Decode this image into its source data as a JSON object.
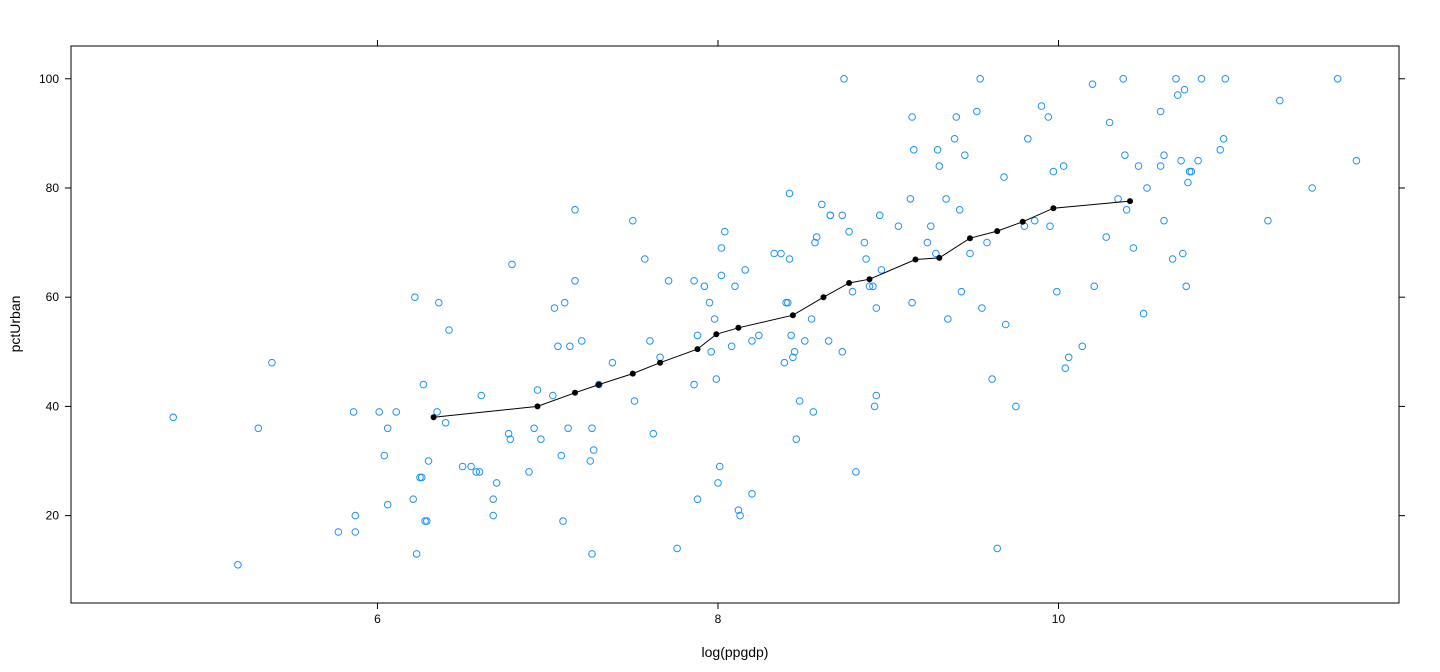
{
  "chart_data": {
    "type": "scatter",
    "xlabel": "log(ppgdp)",
    "ylabel": "pctUrban",
    "xlim": [
      4.2,
      12.0
    ],
    "ylim": [
      4,
      106
    ],
    "x_ticks": [
      6,
      8,
      10
    ],
    "y_ticks": [
      20,
      40,
      60,
      80,
      100
    ],
    "grid": false,
    "colors": {
      "points": "#1E90FF",
      "smooth_line": "#000000",
      "frame": "#000000"
    },
    "series": [
      {
        "type": "scatter",
        "marker": "open-circle",
        "points": [
          [
            4.8,
            38
          ],
          [
            5.18,
            11
          ],
          [
            5.3,
            36
          ],
          [
            5.38,
            48
          ],
          [
            5.77,
            17
          ],
          [
            5.86,
            39
          ],
          [
            5.87,
            20
          ],
          [
            5.87,
            17
          ],
          [
            6.01,
            39
          ],
          [
            6.04,
            31
          ],
          [
            6.06,
            36
          ],
          [
            6.06,
            22
          ],
          [
            6.11,
            39
          ],
          [
            6.21,
            23
          ],
          [
            6.22,
            60
          ],
          [
            6.23,
            13
          ],
          [
            6.25,
            27
          ],
          [
            6.26,
            27
          ],
          [
            6.27,
            44
          ],
          [
            6.28,
            19
          ],
          [
            6.29,
            19
          ],
          [
            6.3,
            30
          ],
          [
            6.35,
            39
          ],
          [
            6.36,
            59
          ],
          [
            6.4,
            37
          ],
          [
            6.42,
            54
          ],
          [
            6.5,
            29
          ],
          [
            6.55,
            29
          ],
          [
            6.58,
            28
          ],
          [
            6.6,
            28
          ],
          [
            6.61,
            42
          ],
          [
            6.68,
            20
          ],
          [
            6.68,
            23
          ],
          [
            6.7,
            26
          ],
          [
            6.77,
            35
          ],
          [
            6.78,
            34
          ],
          [
            6.79,
            66
          ],
          [
            6.89,
            28
          ],
          [
            6.92,
            36
          ],
          [
            6.94,
            43
          ],
          [
            6.96,
            34
          ],
          [
            7.03,
            42
          ],
          [
            7.04,
            58
          ],
          [
            7.06,
            51
          ],
          [
            7.08,
            31
          ],
          [
            7.09,
            19
          ],
          [
            7.1,
            59
          ],
          [
            7.12,
            36
          ],
          [
            7.13,
            51
          ],
          [
            7.16,
            63
          ],
          [
            7.16,
            76
          ],
          [
            7.2,
            52
          ],
          [
            7.25,
            30
          ],
          [
            7.26,
            36
          ],
          [
            7.26,
            13
          ],
          [
            7.27,
            32
          ],
          [
            7.3,
            44
          ],
          [
            7.5,
            74
          ],
          [
            7.51,
            41
          ],
          [
            7.38,
            48
          ],
          [
            7.6,
            52
          ],
          [
            7.62,
            35
          ],
          [
            7.57,
            67
          ],
          [
            7.66,
            49
          ],
          [
            7.71,
            63
          ],
          [
            7.76,
            14
          ],
          [
            7.86,
            63
          ],
          [
            7.86,
            44
          ],
          [
            7.88,
            53
          ],
          [
            7.88,
            23
          ],
          [
            7.92,
            62
          ],
          [
            7.95,
            59
          ],
          [
            7.96,
            50
          ],
          [
            7.98,
            56
          ],
          [
            7.99,
            45
          ],
          [
            8.0,
            26
          ],
          [
            8.01,
            29
          ],
          [
            8.02,
            64
          ],
          [
            8.02,
            69
          ],
          [
            8.04,
            72
          ],
          [
            8.08,
            51
          ],
          [
            8.1,
            62
          ],
          [
            8.12,
            21
          ],
          [
            8.13,
            20
          ],
          [
            8.16,
            65
          ],
          [
            8.2,
            52
          ],
          [
            8.2,
            24
          ],
          [
            8.24,
            53
          ],
          [
            8.33,
            68
          ],
          [
            8.37,
            68
          ],
          [
            8.39,
            48
          ],
          [
            8.4,
            59
          ],
          [
            8.41,
            59
          ],
          [
            8.42,
            79
          ],
          [
            8.42,
            67
          ],
          [
            8.43,
            53
          ],
          [
            8.44,
            49
          ],
          [
            8.45,
            50
          ],
          [
            8.46,
            34
          ],
          [
            8.48,
            41
          ],
          [
            8.51,
            52
          ],
          [
            8.55,
            56
          ],
          [
            8.56,
            39
          ],
          [
            8.57,
            70
          ],
          [
            8.58,
            71
          ],
          [
            8.61,
            77
          ],
          [
            8.65,
            52
          ],
          [
            8.66,
            75
          ],
          [
            8.66,
            75
          ],
          [
            8.73,
            75
          ],
          [
            8.73,
            50
          ],
          [
            8.74,
            100
          ],
          [
            8.77,
            72
          ],
          [
            8.79,
            61
          ],
          [
            8.81,
            28
          ],
          [
            8.86,
            70
          ],
          [
            8.87,
            67
          ],
          [
            8.89,
            62
          ],
          [
            8.91,
            62
          ],
          [
            8.92,
            40
          ],
          [
            8.93,
            42
          ],
          [
            8.93,
            58
          ],
          [
            8.95,
            75
          ],
          [
            8.96,
            65
          ],
          [
            9.06,
            73
          ],
          [
            9.13,
            78
          ],
          [
            9.14,
            93
          ],
          [
            9.14,
            59
          ],
          [
            9.15,
            87
          ],
          [
            9.23,
            70
          ],
          [
            9.25,
            73
          ],
          [
            9.28,
            68
          ],
          [
            9.29,
            87
          ],
          [
            9.3,
            84
          ],
          [
            9.34,
            78
          ],
          [
            9.35,
            56
          ],
          [
            9.39,
            89
          ],
          [
            9.4,
            93
          ],
          [
            9.42,
            76
          ],
          [
            9.43,
            61
          ],
          [
            9.45,
            86
          ],
          [
            9.48,
            68
          ],
          [
            9.52,
            94
          ],
          [
            9.54,
            100
          ],
          [
            9.55,
            58
          ],
          [
            9.58,
            70
          ],
          [
            9.61,
            45
          ],
          [
            9.64,
            14
          ],
          [
            9.68,
            82
          ],
          [
            9.69,
            55
          ],
          [
            9.75,
            40
          ],
          [
            9.8,
            73
          ],
          [
            9.82,
            89
          ],
          [
            9.86,
            74
          ],
          [
            9.9,
            95
          ],
          [
            9.94,
            93
          ],
          [
            9.95,
            73
          ],
          [
            9.97,
            83
          ],
          [
            9.99,
            61
          ],
          [
            10.03,
            84
          ],
          [
            10.04,
            47
          ],
          [
            10.06,
            49
          ],
          [
            10.14,
            51
          ],
          [
            10.2,
            99
          ],
          [
            10.21,
            62
          ],
          [
            10.28,
            71
          ],
          [
            10.3,
            92
          ],
          [
            10.35,
            78
          ],
          [
            10.38,
            100
          ],
          [
            10.39,
            86
          ],
          [
            10.4,
            76
          ],
          [
            10.44,
            69
          ],
          [
            10.47,
            84
          ],
          [
            10.5,
            57
          ],
          [
            10.52,
            80
          ],
          [
            10.6,
            94
          ],
          [
            10.6,
            84
          ],
          [
            10.62,
            86
          ],
          [
            10.62,
            74
          ],
          [
            10.67,
            67
          ],
          [
            10.69,
            100
          ],
          [
            10.7,
            97
          ],
          [
            10.72,
            85
          ],
          [
            10.73,
            68
          ],
          [
            10.74,
            98
          ],
          [
            10.75,
            62
          ],
          [
            10.76,
            81
          ],
          [
            10.77,
            83
          ],
          [
            10.78,
            83
          ],
          [
            10.82,
            85
          ],
          [
            10.84,
            100
          ],
          [
            10.95,
            87
          ],
          [
            10.97,
            89
          ],
          [
            10.98,
            100
          ],
          [
            11.23,
            74
          ],
          [
            11.3,
            96
          ],
          [
            11.49,
            80
          ],
          [
            11.64,
            100
          ],
          [
            11.75,
            85
          ]
        ]
      },
      {
        "type": "line",
        "marker": "filled-dot",
        "points": [
          [
            6.33,
            38
          ],
          [
            6.94,
            40
          ],
          [
            7.16,
            42.5
          ],
          [
            7.3,
            44
          ],
          [
            7.5,
            46
          ],
          [
            7.66,
            48
          ],
          [
            7.88,
            50.5
          ],
          [
            7.99,
            53.2
          ],
          [
            8.12,
            54.4
          ],
          [
            8.44,
            56.7
          ],
          [
            8.62,
            60
          ],
          [
            8.77,
            62.6
          ],
          [
            8.89,
            63.3
          ],
          [
            9.16,
            66.9
          ],
          [
            9.3,
            67.2
          ],
          [
            9.48,
            70.8
          ],
          [
            9.64,
            72.1
          ],
          [
            9.79,
            73.8
          ],
          [
            9.97,
            76.3
          ],
          [
            10.42,
            77.6
          ]
        ]
      }
    ]
  }
}
